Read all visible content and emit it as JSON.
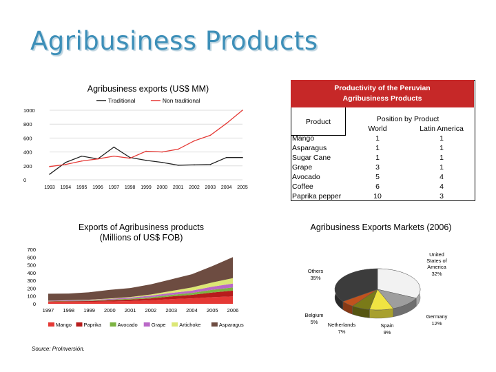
{
  "title": "Agribusiness Products",
  "source": "Source: ProInversión.",
  "charts": [
    {
      "type": "line",
      "title": "Agribusiness exports (US$ MM)",
      "x": [
        "1993",
        "1994",
        "1995",
        "1996",
        "1997",
        "1998",
        "1999",
        "2000",
        "2001",
        "2002",
        "2003",
        "2004",
        "2005"
      ],
      "ylim": [
        0,
        1000
      ],
      "yticks": [
        0,
        200,
        400,
        600,
        800,
        1000
      ],
      "series": [
        {
          "name": "Traditional",
          "color": "#222222",
          "values": [
            80,
            250,
            340,
            300,
            470,
            320,
            280,
            250,
            210,
            215,
            220,
            320,
            320
          ]
        },
        {
          "name": "Non traditional",
          "color": "#e53935",
          "values": [
            190,
            220,
            270,
            300,
            340,
            310,
            410,
            400,
            440,
            560,
            640,
            810,
            1000
          ]
        }
      ]
    },
    {
      "type": "area",
      "title": "Exports of Agribusiness products\n(Millions of US$ FOB)",
      "x": [
        "1997",
        "1998",
        "1999",
        "2000",
        "2001",
        "2002",
        "2003",
        "2004",
        "2005",
        "2006"
      ],
      "ylim": [
        0,
        700
      ],
      "yticks": [
        0,
        100,
        200,
        300,
        400,
        500,
        600,
        700
      ],
      "series": [
        {
          "name": "Mango",
          "color": "#e53935",
          "values": [
            25,
            25,
            25,
            30,
            35,
            45,
            60,
            70,
            85,
            95
          ]
        },
        {
          "name": "Paprika",
          "color": "#b71c1c",
          "values": [
            5,
            8,
            10,
            15,
            20,
            25,
            35,
            45,
            60,
            75
          ]
        },
        {
          "name": "Avocado",
          "color": "#7cb342",
          "values": [
            3,
            5,
            6,
            8,
            10,
            15,
            20,
            25,
            35,
            40
          ]
        },
        {
          "name": "Grape",
          "color": "#ba68c8",
          "values": [
            5,
            6,
            8,
            10,
            15,
            20,
            25,
            30,
            40,
            50
          ]
        },
        {
          "name": "Artichoke",
          "color": "#dce775",
          "values": [
            2,
            3,
            4,
            6,
            8,
            15,
            25,
            40,
            55,
            70
          ]
        },
        {
          "name": "Asparagus",
          "color": "#6d4c41",
          "values": [
            90,
            85,
            95,
            110,
            115,
            130,
            150,
            170,
            210,
            270
          ]
        }
      ]
    },
    {
      "type": "pie",
      "title": "Agribusiness Exports Markets (2006)",
      "slices": [
        {
          "label": "United States of America",
          "pct": "32%",
          "value": 32,
          "color": "#f2f2f2"
        },
        {
          "label": "Germany",
          "pct": "12%",
          "value": 12,
          "color": "#9e9e9e"
        },
        {
          "label": "Spain",
          "pct": "9%",
          "value": 9,
          "color": "#f0e442"
        },
        {
          "label": "Netherlands",
          "pct": "7%",
          "value": 7,
          "color": "#7a7a18"
        },
        {
          "label": "Belgium",
          "pct": "5%",
          "value": 5,
          "color": "#c0521e"
        },
        {
          "label": "Others",
          "pct": "35%",
          "value": 35,
          "color": "#3c3c3c"
        }
      ]
    }
  ],
  "table": {
    "title": "Productivity of the Peruvian Agribusiness Products",
    "col_product": "Product",
    "col_position": "Position by Product",
    "col_world": "World",
    "col_latam": "Latin America",
    "rows": [
      {
        "product": "Mango",
        "world": "1",
        "latam": "1"
      },
      {
        "product": "Asparagus",
        "world": "1",
        "latam": "1"
      },
      {
        "product": "Sugar Cane",
        "world": "1",
        "latam": "1"
      },
      {
        "product": "Grape",
        "world": "3",
        "latam": "1"
      },
      {
        "product": "Avocado",
        "world": "5",
        "latam": "4"
      },
      {
        "product": "Coffee",
        "world": "6",
        "latam": "4"
      },
      {
        "product": "Paprika pepper",
        "world": "10",
        "latam": "3"
      }
    ]
  }
}
